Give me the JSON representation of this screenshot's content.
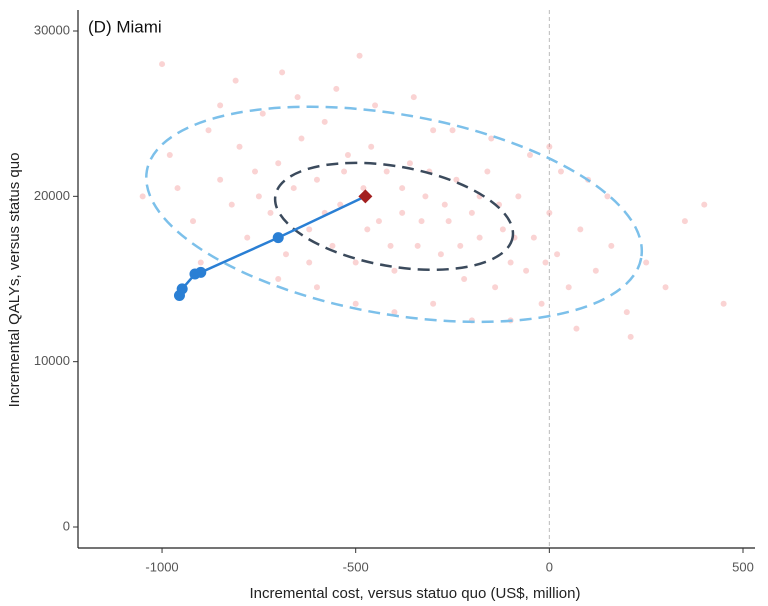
{
  "chart_data": {
    "type": "scatter",
    "title": "(D) Miami",
    "x_label": "Incremental cost, versus statuo quo (US$, million)",
    "y_label": "Incremental QALYs, versus status quo",
    "xlim": [
      -1217,
      531
    ],
    "ylim": [
      -1270,
      31270
    ],
    "xticks": [
      -1000,
      -500,
      0,
      500
    ],
    "yticks": [
      0,
      10000,
      20000,
      30000
    ],
    "vline": 0,
    "cloud": {
      "color": "#f08080",
      "x": [
        -1050,
        -980,
        -920,
        -880,
        -850,
        -820,
        -800,
        -780,
        -760,
        -740,
        -720,
        -700,
        -680,
        -660,
        -640,
        -620,
        -600,
        -580,
        -560,
        -540,
        -520,
        -500,
        -480,
        -460,
        -440,
        -420,
        -400,
        -380,
        -360,
        -340,
        -320,
        -300,
        -280,
        -260,
        -240,
        -220,
        -200,
        -180,
        -160,
        -140,
        -120,
        -100,
        -80,
        -60,
        -40,
        -20,
        0,
        20,
        50,
        80,
        120,
        160,
        200,
        250,
        300,
        350,
        -900,
        -850,
        -700,
        -650,
        -600,
        -550,
        -500,
        -450,
        -400,
        -350,
        -300,
        -250,
        -200,
        -150,
        -100,
        -50,
        0,
        100,
        -750,
        -620,
        -530,
        -470,
        -380,
        -330,
        -270,
        -180,
        -90,
        30,
        150,
        -1000,
        -960,
        -810,
        -690,
        -580,
        -490,
        -410,
        -310,
        -230,
        -130,
        -10,
        70,
        210,
        400,
        450
      ],
      "y": [
        20000,
        22500,
        18500,
        24000,
        21000,
        19500,
        23000,
        17500,
        21500,
        25000,
        19000,
        22000,
        16500,
        20500,
        23500,
        18000,
        21000,
        24500,
        17000,
        19500,
        22500,
        16000,
        20500,
        23000,
        18500,
        21500,
        15500,
        19000,
        22000,
        17000,
        20000,
        24000,
        16500,
        18500,
        21000,
        15000,
        19000,
        17500,
        21500,
        14500,
        18000,
        16000,
        20000,
        15500,
        17500,
        13500,
        19000,
        16500,
        14500,
        18000,
        15500,
        17000,
        13000,
        16000,
        14500,
        18500,
        16000,
        25500,
        15000,
        26000,
        14500,
        26500,
        13500,
        25500,
        13000,
        26000,
        13500,
        24000,
        12500,
        23500,
        12500,
        22500,
        23000,
        21000,
        20000,
        16000,
        21500,
        18000,
        20500,
        18500,
        19500,
        20000,
        17500,
        21500,
        20000,
        28000,
        20500,
        27000,
        27500,
        19000,
        28500,
        17000,
        21500,
        17000,
        19500,
        16000,
        12000,
        11500,
        19500,
        13500
      ]
    },
    "ellipses": [
      {
        "color": "#7cc0ea",
        "cx": -401,
        "cy": 18910,
        "rx": 648,
        "ry": 6040,
        "angle": 10
      },
      {
        "color": "#3b4a5c",
        "cx": -401,
        "cy": 18790,
        "rx": 311,
        "ry": 3020,
        "angle": 10
      }
    ],
    "path": {
      "color": "#2a7fd4",
      "x": [
        -955,
        -948,
        -915,
        -900,
        -700,
        -475
      ],
      "y": [
        14000,
        14400,
        15300,
        15400,
        17500,
        20000
      ]
    },
    "point": {
      "color": "#a32020",
      "x": -475,
      "y": 20000
    }
  }
}
